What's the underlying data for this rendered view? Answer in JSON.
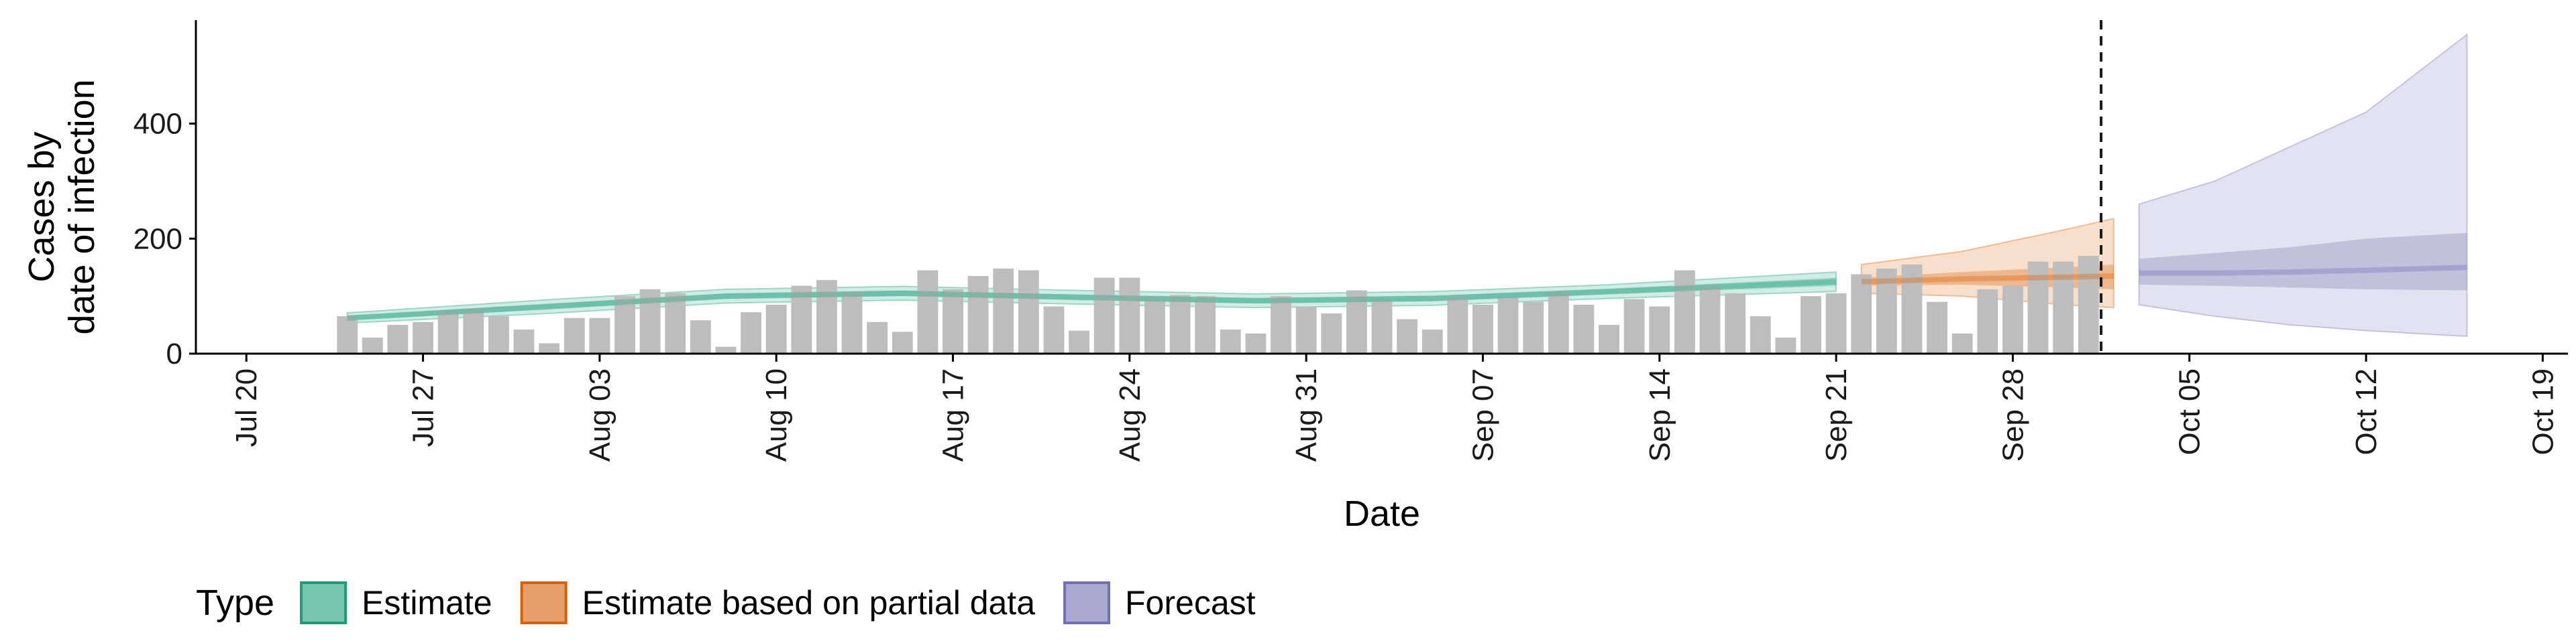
{
  "chart_data": {
    "type": "bar",
    "title": "",
    "xlabel": "Date",
    "ylabel": [
      "Cases by",
      "date of infection"
    ],
    "ylim": [
      0,
      580
    ],
    "yticks": [
      0,
      200,
      400
    ],
    "xlim": [
      "2020-07-18",
      "2020-10-20"
    ],
    "x_tick_labels": [
      {
        "date": "2020-07-20",
        "label": "Jul 20"
      },
      {
        "date": "2020-07-27",
        "label": "Jul 27"
      },
      {
        "date": "2020-08-03",
        "label": "Aug 03"
      },
      {
        "date": "2020-08-10",
        "label": "Aug 10"
      },
      {
        "date": "2020-08-17",
        "label": "Aug 17"
      },
      {
        "date": "2020-08-24",
        "label": "Aug 24"
      },
      {
        "date": "2020-08-31",
        "label": "Aug 31"
      },
      {
        "date": "2020-09-07",
        "label": "Sep 07"
      },
      {
        "date": "2020-09-14",
        "label": "Sep 14"
      },
      {
        "date": "2020-09-21",
        "label": "Sep 21"
      },
      {
        "date": "2020-09-28",
        "label": "Sep 28"
      },
      {
        "date": "2020-10-05",
        "label": "Oct 05"
      },
      {
        "date": "2020-10-12",
        "label": "Oct 12"
      },
      {
        "date": "2020-10-19",
        "label": "Oct 19"
      }
    ],
    "reported_cases": {
      "start_date": "2020-07-24",
      "color": "#bdbdbd",
      "values": [
        65,
        28,
        50,
        55,
        75,
        78,
        65,
        42,
        18,
        62,
        62,
        100,
        112,
        105,
        58,
        12,
        72,
        85,
        118,
        128,
        108,
        55,
        38,
        145,
        112,
        135,
        148,
        145,
        82,
        40,
        132,
        132,
        96,
        102,
        100,
        42,
        35,
        100,
        82,
        70,
        110,
        95,
        60,
        42,
        98,
        85,
        98,
        90,
        108,
        85,
        50,
        95,
        82,
        145,
        118,
        105,
        65,
        28,
        100,
        105,
        138,
        148,
        155,
        90,
        35,
        112,
        118,
        160,
        160,
        170
      ]
    },
    "forecast_cutoff": "2020-10-02",
    "series": [
      {
        "name": "Estimate",
        "color": "#1b9e77",
        "dates": [
          "2020-07-24",
          "2020-08-01",
          "2020-08-08",
          "2020-08-15",
          "2020-08-22",
          "2020-08-29",
          "2020-09-05",
          "2020-09-12",
          "2020-09-21"
        ],
        "median": [
          62,
          82,
          100,
          105,
          98,
          92,
          96,
          108,
          125
        ],
        "lower_50": [
          58,
          77,
          95,
          100,
          93,
          87,
          91,
          103,
          118
        ],
        "upper_50": [
          66,
          87,
          105,
          110,
          103,
          97,
          101,
          113,
          132
        ],
        "lower_90": [
          53,
          70,
          88,
          93,
          86,
          80,
          84,
          96,
          108
        ],
        "upper_90": [
          71,
          94,
          112,
          117,
          110,
          104,
          108,
          120,
          142
        ]
      },
      {
        "name": "Estimate based on partial data",
        "color": "#d95f02",
        "dates": [
          "2020-09-22",
          "2020-09-26",
          "2020-09-30",
          "2020-10-02"
        ],
        "median": [
          125,
          130,
          133,
          135
        ],
        "lower_50": [
          118,
          120,
          115,
          112
        ],
        "upper_50": [
          132,
          142,
          150,
          155
        ],
        "lower_90": [
          105,
          100,
          85,
          80
        ],
        "upper_90": [
          155,
          178,
          215,
          235
        ]
      },
      {
        "name": "Forecast",
        "color": "#7570b3",
        "dates": [
          "2020-10-03",
          "2020-10-06",
          "2020-10-09",
          "2020-10-12",
          "2020-10-16"
        ],
        "median": [
          140,
          140,
          142,
          145,
          150
        ],
        "lower_50": [
          120,
          118,
          115,
          112,
          110
        ],
        "upper_50": [
          165,
          175,
          185,
          200,
          210
        ],
        "lower_90": [
          85,
          65,
          50,
          40,
          30
        ],
        "upper_90": [
          260,
          300,
          360,
          420,
          555
        ]
      }
    ],
    "legend": {
      "title": "Type",
      "placement": "bottom",
      "items": [
        "Estimate",
        "Estimate based on partial data",
        "Forecast"
      ]
    }
  }
}
